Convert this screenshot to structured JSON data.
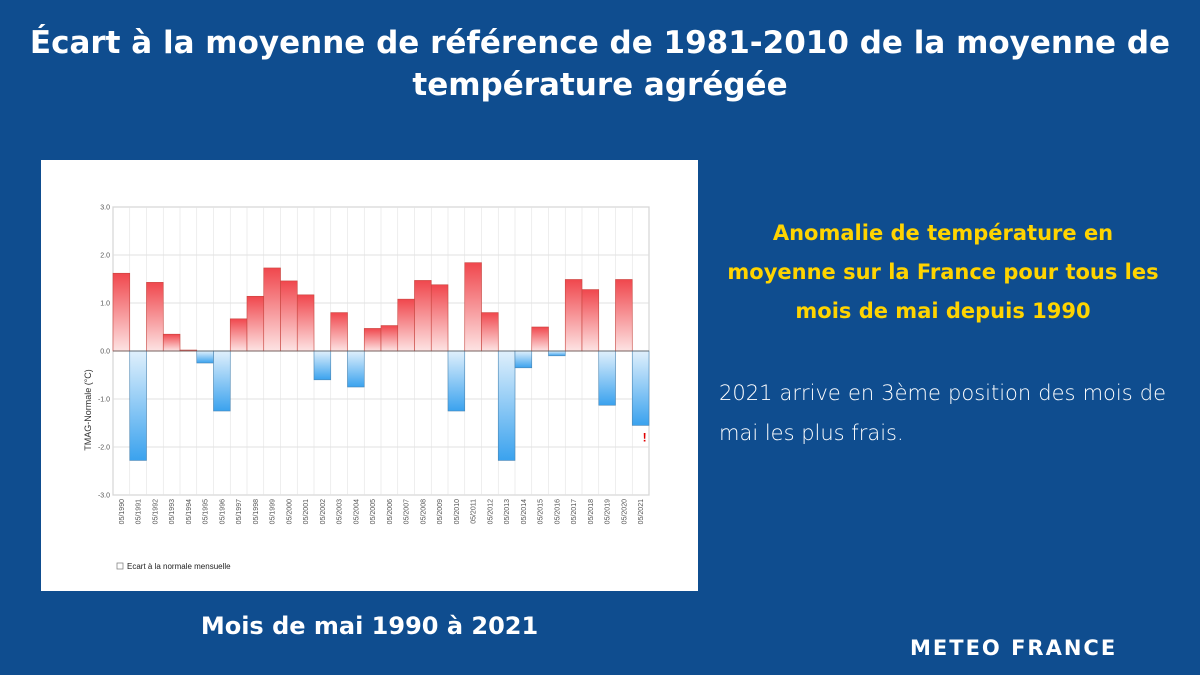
{
  "title": "Écart à la moyenne de référence de 1981-2010 de la moyenne de température agrégée",
  "subtitle": "Mois de mai 1990 à 2021",
  "headline": "Anomalie de température en moyenne sur la France pour tous les mois de mai depuis 1990",
  "body": "2021 arrive en 3ème position des mois de mai les plus frais.",
  "logo": "METEO FRANCE",
  "colors": {
    "background": "#0f4d8f",
    "headline": "#ffd400",
    "positive_bar": "#f0474d",
    "negative_bar": "#3aa2ee",
    "marker": "#e00000"
  },
  "chart_data": {
    "type": "bar",
    "ylabel": "TMAG-Normale (°C)",
    "ylim": [
      -3.0,
      3.0
    ],
    "yticks": [
      "3.0",
      "2.0",
      "1.0",
      "0.0",
      "-1.0",
      "-2.0",
      "-3.0"
    ],
    "grid": true,
    "legend": "Ecart à la normale mensuelle",
    "legend_position": "bottom-left",
    "marker_label": "!",
    "marker_category": "05/2021",
    "categories": [
      "05/1990",
      "05/1991",
      "05/1992",
      "05/1993",
      "05/1994",
      "05/1995",
      "05/1996",
      "05/1997",
      "05/1998",
      "05/1999",
      "05/2000",
      "05/2001",
      "05/2002",
      "05/2003",
      "05/2004",
      "05/2005",
      "05/2006",
      "05/2007",
      "05/2008",
      "05/2009",
      "05/2010",
      "05/2011",
      "05/2012",
      "05/2013",
      "05/2014",
      "05/2015",
      "05/2016",
      "05/2017",
      "05/2018",
      "05/2019",
      "05/2020",
      "05/2021"
    ],
    "values": [
      1.62,
      -2.28,
      1.43,
      0.35,
      0.02,
      -0.25,
      -1.25,
      0.67,
      1.14,
      1.73,
      1.46,
      1.17,
      -0.6,
      0.8,
      -0.75,
      0.47,
      0.53,
      1.08,
      1.47,
      1.38,
      -1.25,
      1.84,
      0.8,
      -2.28,
      -0.35,
      0.5,
      -0.1,
      1.49,
      1.28,
      -1.13,
      1.49,
      -1.55
    ]
  }
}
